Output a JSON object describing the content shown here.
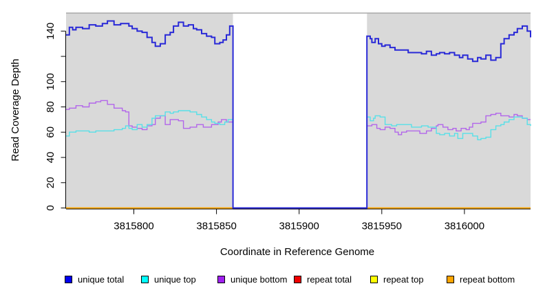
{
  "figure": {
    "xlabel": "Coordinate in Reference Genome",
    "ylabel": "Read Coverage Depth"
  },
  "legend": {
    "items": [
      {
        "label": "unique total",
        "color": "#0000ee"
      },
      {
        "label": "unique top",
        "color": "#00ffff"
      },
      {
        "label": "unique bottom",
        "color": "#a020f0"
      },
      {
        "label": "repeat total",
        "color": "#ee0000"
      },
      {
        "label": "repeat top",
        "color": "#ffff00"
      },
      {
        "label": "repeat bottom",
        "color": "#ffa500"
      }
    ]
  },
  "chart_data": {
    "type": "line",
    "step": true,
    "title": "",
    "xlabel": "Coordinate in Reference Genome",
    "ylabel": "Read Coverage Depth",
    "xlim": [
      3815759,
      3816040
    ],
    "ylim": [
      0,
      157
    ],
    "x_ticks": [
      3815800,
      3815850,
      3815900,
      3815950,
      3816000
    ],
    "x_tick_labels": [
      "3815800",
      "3815850",
      "3815900",
      "3815950",
      "3816000"
    ],
    "y_ticks": [
      0,
      20,
      40,
      60,
      80,
      100,
      120,
      140
    ],
    "y_tick_labels": [
      "0",
      "20",
      "40",
      "60",
      "80",
      "100",
      "",
      "140"
    ],
    "grid": false,
    "legend_position": "bottom",
    "panel_color": "#d9d9d9",
    "panel_top_line_color": "#999999",
    "gap_bottom_line_color": "#b7abf0",
    "background_regions": [
      {
        "x0": 3815759,
        "x1": 3815860
      },
      {
        "x0": 3815941,
        "x1": 3816040
      }
    ],
    "gap_region": {
      "x0": 3815860,
      "x1": 3815941,
      "fill": "#ffffff"
    },
    "series": [
      {
        "name": "repeat-total",
        "label": "repeat total",
        "color": "#ee0000",
        "lw": 1.4,
        "segments": [
          [
            [
              3815759,
              0
            ],
            [
              3815860,
              0
            ]
          ],
          [
            [
              3815941,
              0
            ],
            [
              3816040,
              0
            ]
          ]
        ]
      },
      {
        "name": "repeat-top",
        "label": "repeat top",
        "color": "#ffff00",
        "lw": 1.4,
        "segments": [
          [
            [
              3815759,
              0
            ],
            [
              3815860,
              0
            ]
          ],
          [
            [
              3815941,
              0
            ],
            [
              3816040,
              0
            ]
          ]
        ]
      },
      {
        "name": "repeat-bottom",
        "label": "repeat bottom",
        "color": "#ffa500",
        "lw": 1.6,
        "segments": [
          [
            [
              3815759,
              0
            ],
            [
              3815860,
              0
            ]
          ],
          [
            [
              3815941,
              0
            ],
            [
              3816040,
              0
            ]
          ]
        ]
      },
      {
        "name": "unique-bottom",
        "label": "unique bottom",
        "color": "#b266ea",
        "lw": 1.4,
        "segments": [
          [
            [
              3815759,
              78
            ],
            [
              3815761,
              79
            ],
            [
              3815765,
              81
            ],
            [
              3815769,
              80
            ],
            [
              3815773,
              83
            ],
            [
              3815777,
              84
            ],
            [
              3815780,
              85
            ],
            [
              3815784,
              82
            ],
            [
              3815788,
              79
            ],
            [
              3815793,
              77
            ],
            [
              3815795,
              76
            ],
            [
              3815797,
              65
            ],
            [
              3815799,
              64
            ],
            [
              3815802,
              63
            ],
            [
              3815805,
              62
            ],
            [
              3815808,
              65
            ],
            [
              3815811,
              66
            ],
            [
              3815813,
              71
            ],
            [
              3815816,
              73
            ],
            [
              3815819,
              66
            ],
            [
              3815822,
              70
            ],
            [
              3815824,
              70
            ],
            [
              3815827,
              69
            ],
            [
              3815830,
              63
            ],
            [
              3815834,
              64
            ],
            [
              3815838,
              66
            ],
            [
              3815842,
              64
            ],
            [
              3815847,
              66
            ],
            [
              3815851,
              68
            ],
            [
              3815853,
              70
            ],
            [
              3815856,
              68
            ],
            [
              3815860,
              69
            ]
          ],
          [
            [
              3815941,
              65
            ],
            [
              3815944,
              66
            ],
            [
              3815947,
              63
            ],
            [
              3815949,
              62
            ],
            [
              3815952,
              64
            ],
            [
              3815955,
              63
            ],
            [
              3815958,
              60
            ],
            [
              3815960,
              58
            ],
            [
              3815962,
              60
            ],
            [
              3815965,
              61
            ],
            [
              3815969,
              61
            ],
            [
              3815973,
              59
            ],
            [
              3815977,
              61
            ],
            [
              3815980,
              63
            ],
            [
              3815983,
              65
            ],
            [
              3815984,
              66
            ],
            [
              3815987,
              64
            ],
            [
              3815990,
              62
            ],
            [
              3815993,
              63
            ],
            [
              3815995,
              61
            ],
            [
              3815998,
              63
            ],
            [
              3816001,
              62
            ],
            [
              3816003,
              64
            ],
            [
              3816005,
              67
            ],
            [
              3816008,
              67
            ],
            [
              3816010,
              68
            ],
            [
              3816013,
              73
            ],
            [
              3816016,
              74
            ],
            [
              3816019,
              75
            ],
            [
              3816022,
              73
            ],
            [
              3816024,
              73
            ],
            [
              3816027,
              72
            ],
            [
              3816030,
              74
            ],
            [
              3816032,
              73
            ],
            [
              3816035,
              71
            ],
            [
              3816038,
              70
            ],
            [
              3816040,
              70
            ]
          ]
        ]
      },
      {
        "name": "unique-top",
        "label": "unique top",
        "color": "#57e0e8",
        "lw": 1.4,
        "segments": [
          [
            [
              3815759,
              57
            ],
            [
              3815761,
              60
            ],
            [
              3815765,
              61
            ],
            [
              3815769,
              61
            ],
            [
              3815773,
              60
            ],
            [
              3815777,
              61
            ],
            [
              3815784,
              61
            ],
            [
              3815788,
              62
            ],
            [
              3815793,
              63
            ],
            [
              3815795,
              65
            ],
            [
              3815797,
              63
            ],
            [
              3815799,
              62
            ],
            [
              3815802,
              66
            ],
            [
              3815805,
              64
            ],
            [
              3815808,
              66
            ],
            [
              3815811,
              71
            ],
            [
              3815813,
              73
            ],
            [
              3815816,
              73
            ],
            [
              3815819,
              76
            ],
            [
              3815822,
              75
            ],
            [
              3815824,
              76
            ],
            [
              3815827,
              77
            ],
            [
              3815830,
              77
            ],
            [
              3815834,
              76
            ],
            [
              3815838,
              74
            ],
            [
              3815841,
              72
            ],
            [
              3815844,
              70
            ],
            [
              3815847,
              68
            ],
            [
              3815849,
              67
            ],
            [
              3815852,
              66
            ],
            [
              3815855,
              68
            ],
            [
              3815857,
              70
            ],
            [
              3815860,
              71
            ]
          ],
          [
            [
              3815941,
              72
            ],
            [
              3815943,
              69
            ],
            [
              3815945,
              71
            ],
            [
              3815946,
              73
            ],
            [
              3815949,
              72
            ],
            [
              3815952,
              66
            ],
            [
              3815956,
              65
            ],
            [
              3815959,
              66
            ],
            [
              3815963,
              66
            ],
            [
              3815968,
              64
            ],
            [
              3815972,
              64
            ],
            [
              3815974,
              65
            ],
            [
              3815978,
              64
            ],
            [
              3815983,
              59
            ],
            [
              3815985,
              58
            ],
            [
              3815988,
              59
            ],
            [
              3815991,
              57
            ],
            [
              3815994,
              59
            ],
            [
              3815996,
              55
            ],
            [
              3815999,
              59
            ],
            [
              3816002,
              59
            ],
            [
              3816005,
              57
            ],
            [
              3816008,
              54
            ],
            [
              3816010,
              55
            ],
            [
              3816013,
              56
            ],
            [
              3816016,
              62
            ],
            [
              3816019,
              65
            ],
            [
              3816022,
              66
            ],
            [
              3816024,
              68
            ],
            [
              3816027,
              70
            ],
            [
              3816030,
              72
            ],
            [
              3816032,
              72
            ],
            [
              3816035,
              71
            ],
            [
              3816038,
              66
            ],
            [
              3816040,
              65
            ]
          ]
        ]
      },
      {
        "name": "unique-total",
        "label": "unique total",
        "color": "#2828d7",
        "lw": 2,
        "segments": [
          [
            [
              3815759,
              137
            ],
            [
              3815761,
              143
            ],
            [
              3815763,
              141
            ],
            [
              3815765,
              143
            ],
            [
              3815769,
              142
            ],
            [
              3815773,
              145
            ],
            [
              3815777,
              144
            ],
            [
              3815781,
              146
            ],
            [
              3815784,
              148
            ],
            [
              3815788,
              145
            ],
            [
              3815792,
              146
            ],
            [
              3815797,
              144
            ],
            [
              3815799,
              142
            ],
            [
              3815802,
              140
            ],
            [
              3815805,
              139
            ],
            [
              3815808,
              135
            ],
            [
              3815811,
              131
            ],
            [
              3815813,
              128
            ],
            [
              3815816,
              130
            ],
            [
              3815819,
              137
            ],
            [
              3815822,
              139
            ],
            [
              3815824,
              144
            ],
            [
              3815827,
              147
            ],
            [
              3815830,
              144
            ],
            [
              3815833,
              145
            ],
            [
              3815836,
              142
            ],
            [
              3815838,
              141
            ],
            [
              3815841,
              138
            ],
            [
              3815844,
              136
            ],
            [
              3815847,
              135
            ],
            [
              3815849,
              130
            ],
            [
              3815852,
              131
            ],
            [
              3815854,
              133
            ],
            [
              3815856,
              137
            ],
            [
              3815858,
              144
            ],
            [
              3815860,
              0
            ],
            [
              3815941,
              136
            ],
            [
              3815943,
              134
            ],
            [
              3815944,
              131
            ],
            [
              3815946,
              134
            ],
            [
              3815948,
              130
            ],
            [
              3815950,
              128
            ],
            [
              3815952,
              129
            ],
            [
              3815955,
              127
            ],
            [
              3815958,
              125
            ],
            [
              3815962,
              125
            ],
            [
              3815966,
              123
            ],
            [
              3815970,
              123
            ],
            [
              3815974,
              122
            ],
            [
              3815977,
              124
            ],
            [
              3815980,
              121
            ],
            [
              3815983,
              122
            ],
            [
              3815985,
              123
            ],
            [
              3815988,
              122
            ],
            [
              3815991,
              123
            ],
            [
              3815994,
              121
            ],
            [
              3815997,
              119
            ],
            [
              3815999,
              121
            ],
            [
              3816002,
              118
            ],
            [
              3816005,
              116
            ],
            [
              3816008,
              119
            ],
            [
              3816010,
              118
            ],
            [
              3816013,
              121
            ],
            [
              3816016,
              117
            ],
            [
              3816019,
              119
            ],
            [
              3816022,
              130
            ],
            [
              3816024,
              134
            ],
            [
              3816027,
              137
            ],
            [
              3816030,
              139
            ],
            [
              3816032,
              142
            ],
            [
              3816035,
              144
            ],
            [
              3816038,
              140
            ],
            [
              3816040,
              135
            ]
          ]
        ]
      }
    ]
  }
}
